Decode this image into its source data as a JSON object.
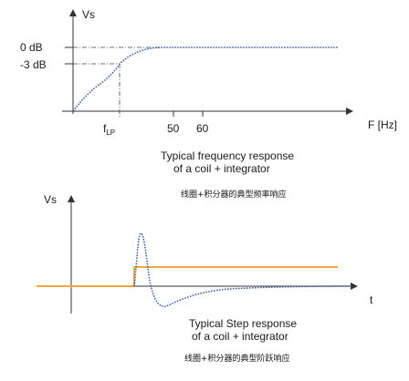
{
  "colors": {
    "axis": "#333333",
    "response_curve": "#2f5597",
    "step_input": "#f4a340",
    "guide": "#444444"
  },
  "chart_data": [
    {
      "type": "line",
      "ylabel": "Vs",
      "xlabel": "F [Hz]",
      "y_ticks": [
        "0 dB",
        "-3 dB"
      ],
      "x_ticks": [
        {
          "main": "f",
          "sub": "LP"
        },
        {
          "main": "50",
          "sub": ""
        },
        {
          "main": "60",
          "sub": ""
        }
      ],
      "grid": false,
      "series": [
        {
          "line_style": "dotted",
          "shape": "rises from 0, reaches -3 dB at fLP, flat at 0 dB beyond ~50 Hz"
        }
      ],
      "caption": [
        "Typical frequency response",
        "of a coil + integrator"
      ],
      "caption_cn": "线圈+积分器的典型频率响应"
    },
    {
      "type": "line",
      "ylabel": "Vs",
      "xlabel": "t",
      "grid": false,
      "series": [
        {
          "line_style": "solid",
          "shape": "step input, rises at t0 and stays constant"
        },
        {
          "line_style": "dotted",
          "shape": "positive spike then negative undershoot, decaying to 0"
        }
      ],
      "caption": [
        "Typical Step response",
        "of a coil + integrator"
      ],
      "caption_cn": "线圈+积分器的典型阶跃响应"
    }
  ]
}
